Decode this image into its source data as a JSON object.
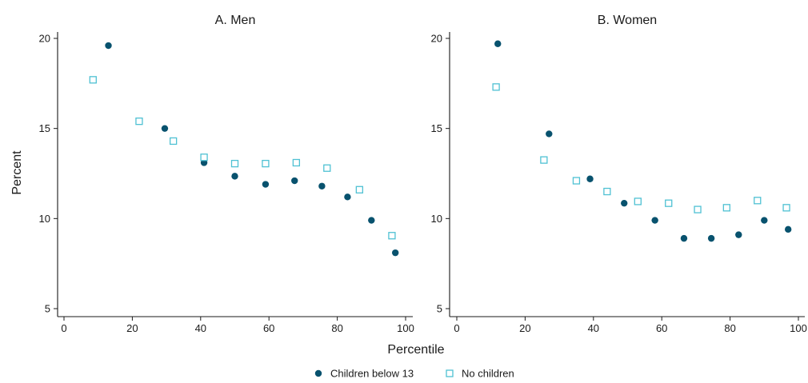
{
  "chart_data": [
    {
      "type": "scatter",
      "title": "A. Men",
      "xlabel": "Percentile",
      "ylabel": "Percent",
      "xlim": [
        0,
        100
      ],
      "ylim": [
        4.5,
        21
      ],
      "xticks": [
        0,
        20,
        40,
        60,
        80,
        100
      ],
      "yticks": [
        5,
        10,
        15,
        20
      ],
      "series": [
        {
          "name": "Children below 13",
          "marker": "filled-circle",
          "color": "#08526e",
          "points": [
            [
              13,
              19.6
            ],
            [
              29.5,
              15.0
            ],
            [
              41,
              13.1
            ],
            [
              50,
              12.35
            ],
            [
              59,
              11.9
            ],
            [
              67.5,
              12.1
            ],
            [
              75.5,
              11.8
            ],
            [
              83,
              11.2
            ],
            [
              90,
              9.9
            ],
            [
              97,
              8.1
            ]
          ]
        },
        {
          "name": "No children",
          "marker": "hollow-square",
          "color": "#4fc1d3",
          "points": [
            [
              8.5,
              17.7
            ],
            [
              22,
              15.4
            ],
            [
              32,
              14.3
            ],
            [
              41,
              13.4
            ],
            [
              50,
              13.05
            ],
            [
              59,
              13.05
            ],
            [
              68,
              13.1
            ],
            [
              77,
              12.8
            ],
            [
              86.5,
              11.6
            ],
            [
              96,
              9.05
            ]
          ]
        }
      ]
    },
    {
      "type": "scatter",
      "title": "B. Women",
      "xlabel": "Percentile",
      "ylabel": "Percent",
      "xlim": [
        0,
        100
      ],
      "ylim": [
        4.5,
        21
      ],
      "xticks": [
        0,
        20,
        40,
        60,
        80,
        100
      ],
      "yticks": [
        5,
        10,
        15,
        20
      ],
      "series": [
        {
          "name": "Children below 13",
          "marker": "filled-circle",
          "color": "#08526e",
          "points": [
            [
              12,
              19.7
            ],
            [
              27,
              14.7
            ],
            [
              39,
              12.2
            ],
            [
              49,
              10.85
            ],
            [
              58,
              9.9
            ],
            [
              66.5,
              8.9
            ],
            [
              74.5,
              8.9
            ],
            [
              82.5,
              9.1
            ],
            [
              90,
              9.9
            ],
            [
              97,
              9.4
            ]
          ]
        },
        {
          "name": "No children",
          "marker": "hollow-square",
          "color": "#4fc1d3",
          "points": [
            [
              11.5,
              17.3
            ],
            [
              25.5,
              13.25
            ],
            [
              35,
              12.1
            ],
            [
              44,
              11.5
            ],
            [
              53,
              10.95
            ],
            [
              62,
              10.85
            ],
            [
              70.5,
              10.5
            ],
            [
              79,
              10.6
            ],
            [
              88,
              11.0
            ],
            [
              96.5,
              10.6
            ]
          ]
        }
      ]
    }
  ],
  "shared": {
    "xlabel": "Percentile",
    "ylabel": "Percent",
    "legend_position": "bottom-center",
    "grid": false
  },
  "legend": [
    {
      "label": "Children below 13",
      "marker": "filled-circle",
      "color": "#08526e"
    },
    {
      "label": "No children",
      "marker": "hollow-square",
      "color": "#4fc1d3"
    }
  ]
}
